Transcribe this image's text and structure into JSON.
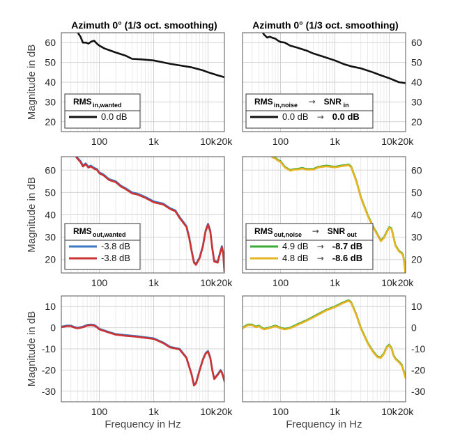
{
  "chart_data": [
    {
      "id": "p11",
      "type": "line",
      "title": "Azimuth 0° (1/3 oct. smoothing)",
      "xlabel": "",
      "ylabel": "Magnitude in dB",
      "xscale": "log",
      "xlim": [
        20,
        20000
      ],
      "ylim": [
        15,
        65
      ],
      "yticks": [
        20,
        30,
        40,
        50,
        60
      ],
      "yaxis_side": "left",
      "xticks": [
        {
          "v": 100,
          "l": "100"
        },
        {
          "v": 1000,
          "l": "1k"
        },
        {
          "v": 10000,
          "l": "10k"
        },
        {
          "v": 20000,
          "l": "20k"
        }
      ],
      "series": [
        {
          "name": "",
          "color": "#111111",
          "x": [
            36,
            45,
            50,
            57,
            63,
            71,
            80,
            90,
            100,
            125,
            160,
            200,
            300,
            400,
            600,
            1000,
            1500,
            2000,
            3000,
            5000,
            8000,
            10000,
            15000,
            20000
          ],
          "y": [
            67,
            63,
            60,
            60,
            59.5,
            60.5,
            61,
            59.5,
            58.5,
            57,
            56,
            55,
            53.5,
            51.8,
            51.5,
            51,
            50,
            49.3,
            48.5,
            47.5,
            46,
            45,
            43.5,
            42.5
          ]
        }
      ],
      "legend": {
        "position": "bottom-left",
        "header": "RMS",
        "header_sub": "in,wanted",
        "header2": "",
        "header2_sub": "",
        "entries": [
          "0.0 dB"
        ],
        "entries_bold": [
          ""
        ]
      }
    },
    {
      "id": "p12",
      "type": "line",
      "title": "Azimuth 0° (1/3 oct. smoothing)",
      "xlabel": "",
      "ylabel": "",
      "xscale": "log",
      "xlim": [
        20,
        20000
      ],
      "ylim": [
        15,
        65
      ],
      "yticks": [
        20,
        30,
        40,
        50,
        60
      ],
      "yaxis_side": "right",
      "xticks": [
        {
          "v": 100,
          "l": "100"
        },
        {
          "v": 1000,
          "l": "1k"
        },
        {
          "v": 10000,
          "l": "10k"
        },
        {
          "v": 20000,
          "l": "20k"
        }
      ],
      "series": [
        {
          "name": "",
          "color": "#111111",
          "x": [
            40,
            50,
            57,
            63,
            70,
            80,
            90,
            100,
            120,
            150,
            200,
            300,
            400,
            600,
            1000,
            1500,
            2000,
            3000,
            5000,
            7000,
            10000,
            15000,
            20000
          ],
          "y": [
            68,
            64,
            62.5,
            63,
            62.5,
            62,
            61,
            60.3,
            60,
            58.5,
            57.5,
            56,
            54.5,
            53,
            51,
            49,
            48,
            47,
            45,
            43.5,
            42,
            40,
            39.5
          ]
        }
      ],
      "legend": {
        "position": "bottom-left",
        "header": "RMS",
        "header_sub": "in,noise",
        "header2": "SNR",
        "header2_sub": "in",
        "entries": [
          "0.0 dB"
        ],
        "entries_bold": [
          "0.0 dB"
        ]
      }
    },
    {
      "id": "p21",
      "type": "line",
      "title": "",
      "xlabel": "",
      "ylabel": "Magnitude in dB",
      "xscale": "log",
      "xlim": [
        20,
        20000
      ],
      "ylim": [
        14,
        66
      ],
      "yticks": [
        20,
        30,
        40,
        50,
        60
      ],
      "yaxis_side": "left",
      "xticks": [
        {
          "v": 100,
          "l": "100"
        },
        {
          "v": 1000,
          "l": "1k"
        },
        {
          "v": 10000,
          "l": "10k"
        },
        {
          "v": 20000,
          "l": "20k"
        }
      ],
      "series": [
        {
          "name": "",
          "color": "#3b78c4",
          "x": [
            38,
            45,
            50,
            56,
            63,
            70,
            80,
            90,
            100,
            120,
            150,
            200,
            250,
            300,
            400,
            500,
            700,
            1000,
            1500,
            2000,
            2500,
            3000,
            4000,
            4500,
            5000,
            5500,
            6000,
            7000,
            8000,
            9000,
            10000,
            11000,
            12000,
            13000,
            15000,
            17000,
            18000,
            19000,
            20000
          ],
          "y": [
            66,
            64,
            62,
            63,
            61.5,
            62,
            61,
            60.5,
            59,
            58,
            56,
            55,
            53,
            52,
            50,
            49.5,
            48,
            46,
            45,
            43,
            42,
            39,
            35,
            30,
            24,
            19,
            18,
            21,
            26,
            33,
            36,
            33,
            25,
            19.5,
            19,
            24,
            26,
            23,
            15
          ]
        },
        {
          "name": "",
          "color": "#cc3333",
          "x": [
            38,
            45,
            50,
            56,
            63,
            70,
            80,
            90,
            100,
            120,
            150,
            200,
            250,
            300,
            400,
            500,
            700,
            1000,
            1500,
            2000,
            2500,
            3000,
            4000,
            4500,
            5000,
            5500,
            6000,
            7000,
            8000,
            9000,
            10000,
            11000,
            12000,
            13000,
            15000,
            17000,
            18000,
            19000,
            20000
          ],
          "y": [
            65.6,
            63.6,
            61.6,
            62.6,
            61.1,
            61.6,
            60.6,
            60.1,
            58.6,
            57.6,
            55.6,
            54.6,
            52.6,
            51.6,
            49.6,
            49.1,
            47.6,
            45.6,
            44.6,
            42.6,
            41.6,
            38.6,
            34.6,
            29.6,
            23.6,
            18.6,
            17.6,
            20.6,
            25.6,
            32.6,
            35.6,
            32.6,
            24.6,
            19.1,
            18.6,
            23.6,
            25.6,
            22.6,
            14.6
          ]
        }
      ],
      "legend": {
        "position": "bottom-left",
        "header": "RMS",
        "header_sub": "out,wanted",
        "header2": "",
        "header2_sub": "",
        "entries": [
          "-3.8 dB",
          "-3.8 dB"
        ],
        "entries_bold": [
          "",
          ""
        ]
      }
    },
    {
      "id": "p22",
      "type": "line",
      "title": "",
      "xlabel": "",
      "ylabel": "",
      "xscale": "log",
      "xlim": [
        20,
        20000
      ],
      "ylim": [
        14,
        66
      ],
      "yticks": [
        20,
        30,
        40,
        50,
        60
      ],
      "yaxis_side": "right",
      "xticks": [
        {
          "v": 100,
          "l": "100"
        },
        {
          "v": 1000,
          "l": "1k"
        },
        {
          "v": 10000,
          "l": "10k"
        },
        {
          "v": 20000,
          "l": "20k"
        }
      ],
      "series": [
        {
          "name": "",
          "color": "#3aaa35",
          "x": [
            70,
            80,
            90,
            100,
            120,
            150,
            180,
            200,
            250,
            300,
            400,
            500,
            700,
            1000,
            1300,
            1600,
            1800,
            2000,
            2500,
            3000,
            4000,
            5000,
            6000,
            7000,
            8000,
            9000,
            10000,
            11000,
            12000,
            13000,
            15000,
            17000,
            18000,
            19000,
            20000
          ],
          "y": [
            66,
            65.5,
            64.5,
            64,
            61.5,
            60,
            60.5,
            60.5,
            61,
            60.5,
            60.5,
            61.5,
            62,
            61.5,
            62,
            62.3,
            62.5,
            61.5,
            55,
            48,
            40,
            35,
            31.5,
            28.5,
            30,
            32.5,
            34.5,
            34,
            30,
            26.5,
            24,
            23,
            22,
            18.5,
            13
          ]
        },
        {
          "name": "",
          "color": "#e6b422",
          "x": [
            70,
            80,
            90,
            100,
            120,
            150,
            180,
            200,
            250,
            300,
            400,
            500,
            700,
            1000,
            1300,
            1600,
            1800,
            2000,
            2500,
            3000,
            4000,
            5000,
            6000,
            7000,
            8000,
            9000,
            10000,
            11000,
            12000,
            13000,
            15000,
            17000,
            18000,
            19000,
            20000
          ],
          "y": [
            65.8,
            65.2,
            64.2,
            63.7,
            61.2,
            59.7,
            60.2,
            60.2,
            60.7,
            60.2,
            60.2,
            61.2,
            61.7,
            61.2,
            61.7,
            62,
            62.2,
            61.2,
            54.7,
            47.7,
            39.7,
            34.7,
            31.2,
            28.2,
            29.7,
            32.2,
            34.2,
            33.7,
            29.7,
            26.2,
            23.7,
            22.7,
            21.7,
            18.2,
            12.7
          ]
        }
      ],
      "legend": {
        "position": "bottom-left",
        "header": "RMS",
        "header_sub": "out,noise",
        "header2": "SNR",
        "header2_sub": "out",
        "entries": [
          "4.9 dB",
          "4.8 dB"
        ],
        "entries_bold": [
          "-8.7 dB",
          "-8.6 dB"
        ]
      }
    },
    {
      "id": "p31",
      "type": "line",
      "title": "",
      "xlabel": "Frequency in Hz",
      "ylabel": "Magnitude in dB",
      "xscale": "log",
      "xlim": [
        20,
        20000
      ],
      "ylim": [
        -35,
        15
      ],
      "yticks": [
        -30,
        -20,
        -10,
        0,
        10
      ],
      "yaxis_side": "left",
      "xticks": [
        {
          "v": 100,
          "l": "100"
        },
        {
          "v": 1000,
          "l": "1k"
        },
        {
          "v": 10000,
          "l": "10k"
        },
        {
          "v": 20000,
          "l": "20k"
        }
      ],
      "series": [
        {
          "name": "",
          "color": "#3b78c4",
          "x": [
            20,
            25,
            30,
            35,
            40,
            50,
            60,
            70,
            80,
            90,
            100,
            150,
            200,
            300,
            500,
            700,
            1000,
            1500,
            2000,
            3000,
            4000,
            5000,
            5500,
            6000,
            7000,
            8000,
            9000,
            10000,
            11000,
            12000,
            13000,
            15000,
            17000,
            18000,
            19000,
            20000
          ],
          "y": [
            0.5,
            1,
            1,
            0.3,
            0,
            0.5,
            1.3,
            1.5,
            1.3,
            0.5,
            -0.5,
            -2,
            -3,
            -3.5,
            -4,
            -4.5,
            -5,
            -7,
            -9,
            -10,
            -14,
            -22,
            -27,
            -26,
            -20,
            -15,
            -12,
            -11,
            -14,
            -20,
            -24,
            -22,
            -20,
            -21,
            -23,
            -25
          ]
        },
        {
          "name": "",
          "color": "#cc3333",
          "x": [
            20,
            25,
            30,
            35,
            40,
            50,
            60,
            70,
            80,
            90,
            100,
            150,
            200,
            300,
            500,
            700,
            1000,
            1500,
            2000,
            3000,
            4000,
            5000,
            5500,
            6000,
            7000,
            8000,
            9000,
            10000,
            11000,
            12000,
            13000,
            15000,
            17000,
            18000,
            19000,
            20000
          ],
          "y": [
            0.2,
            0.7,
            0.7,
            0,
            -0.3,
            0.2,
            1,
            1.2,
            1,
            0.2,
            -0.8,
            -2.3,
            -3.3,
            -3.8,
            -4.3,
            -4.8,
            -5.3,
            -7.3,
            -9.3,
            -10.3,
            -14.3,
            -22.3,
            -27.3,
            -26.3,
            -20.3,
            -15.3,
            -12.3,
            -11.3,
            -14.3,
            -20.3,
            -24.3,
            -22.3,
            -20.3,
            -21.3,
            -23.3,
            -25.3
          ]
        }
      ],
      "legend": null
    },
    {
      "id": "p32",
      "type": "line",
      "title": "",
      "xlabel": "Frequency in Hz",
      "ylabel": "",
      "xscale": "log",
      "xlim": [
        20,
        20000
      ],
      "ylim": [
        -35,
        15
      ],
      "yticks": [
        -30,
        -20,
        -10,
        0,
        10
      ],
      "yaxis_side": "right",
      "xticks": [
        {
          "v": 100,
          "l": "100"
        },
        {
          "v": 1000,
          "l": "1k"
        },
        {
          "v": 10000,
          "l": "10k"
        },
        {
          "v": 20000,
          "l": "20k"
        }
      ],
      "series": [
        {
          "name": "",
          "color": "#3aaa35",
          "x": [
            20,
            25,
            30,
            35,
            40,
            45,
            50,
            60,
            70,
            80,
            90,
            100,
            120,
            150,
            200,
            300,
            500,
            700,
            1000,
            1300,
            1600,
            1800,
            2000,
            2500,
            3000,
            4000,
            5000,
            6000,
            7000,
            8000,
            9000,
            10000,
            11000,
            12000,
            13000,
            15000,
            17000,
            20000
          ],
          "y": [
            0,
            1.5,
            1.5,
            0.5,
            1,
            0,
            -0.5,
            0,
            0.5,
            1,
            0.5,
            0,
            -0.5,
            0,
            1.5,
            3.5,
            6.5,
            8.5,
            10,
            11.5,
            12.5,
            13,
            12,
            6,
            0,
            -7,
            -11,
            -13.5,
            -14,
            -12,
            -9,
            -8,
            -9.5,
            -13,
            -14.5,
            -16,
            -17.5,
            -23.5
          ]
        },
        {
          "name": "",
          "color": "#e6b422",
          "x": [
            20,
            25,
            30,
            35,
            40,
            45,
            50,
            60,
            70,
            80,
            90,
            100,
            120,
            150,
            200,
            300,
            500,
            700,
            1000,
            1300,
            1600,
            1800,
            2000,
            2500,
            3000,
            4000,
            5000,
            6000,
            7000,
            8000,
            9000,
            10000,
            11000,
            12000,
            13000,
            15000,
            17000,
            20000
          ],
          "y": [
            -0.3,
            1.2,
            1.2,
            0.2,
            0.7,
            -0.3,
            -0.8,
            -0.3,
            0.2,
            0.7,
            0.2,
            -0.3,
            -0.8,
            -0.3,
            1.2,
            3.2,
            6.2,
            8.2,
            9.7,
            11.2,
            12.2,
            12.7,
            11.7,
            5.7,
            -0.3,
            -7.3,
            -11.3,
            -13.8,
            -14.3,
            -12.3,
            -9.3,
            -8.3,
            -9.8,
            -13.3,
            -14.8,
            -16.3,
            -17.8,
            -23.8
          ]
        }
      ],
      "legend": null
    }
  ]
}
